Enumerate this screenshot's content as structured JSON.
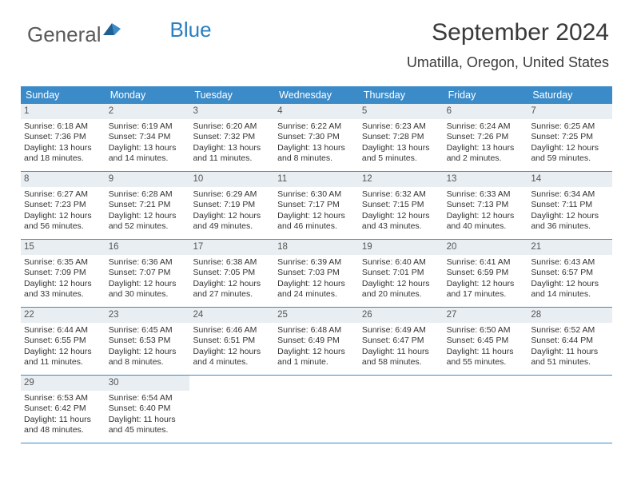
{
  "logo": {
    "text_gray": "General",
    "text_blue": "Blue"
  },
  "header": {
    "month_title": "September 2024",
    "location": "Umatilla, Oregon, United States"
  },
  "calendar": {
    "day_names": [
      "Sunday",
      "Monday",
      "Tuesday",
      "Wednesday",
      "Thursday",
      "Friday",
      "Saturday"
    ],
    "colors": {
      "header_bg": "#3b8bc9",
      "header_fg": "#ffffff",
      "daynum_bg": "#e9eef2",
      "daynum_fg": "#555555",
      "week_divider": "#3b8bc9",
      "text": "#333333"
    },
    "font": {
      "day_names_size": 12.5,
      "day_num_size": 11.5,
      "detail_size": 10.5
    },
    "weeks": [
      [
        {
          "day": "1",
          "sunrise": "Sunrise: 6:18 AM",
          "sunset": "Sunset: 7:36 PM",
          "daylight1": "Daylight: 13 hours",
          "daylight2": "and 18 minutes."
        },
        {
          "day": "2",
          "sunrise": "Sunrise: 6:19 AM",
          "sunset": "Sunset: 7:34 PM",
          "daylight1": "Daylight: 13 hours",
          "daylight2": "and 14 minutes."
        },
        {
          "day": "3",
          "sunrise": "Sunrise: 6:20 AM",
          "sunset": "Sunset: 7:32 PM",
          "daylight1": "Daylight: 13 hours",
          "daylight2": "and 11 minutes."
        },
        {
          "day": "4",
          "sunrise": "Sunrise: 6:22 AM",
          "sunset": "Sunset: 7:30 PM",
          "daylight1": "Daylight: 13 hours",
          "daylight2": "and 8 minutes."
        },
        {
          "day": "5",
          "sunrise": "Sunrise: 6:23 AM",
          "sunset": "Sunset: 7:28 PM",
          "daylight1": "Daylight: 13 hours",
          "daylight2": "and 5 minutes."
        },
        {
          "day": "6",
          "sunrise": "Sunrise: 6:24 AM",
          "sunset": "Sunset: 7:26 PM",
          "daylight1": "Daylight: 13 hours",
          "daylight2": "and 2 minutes."
        },
        {
          "day": "7",
          "sunrise": "Sunrise: 6:25 AM",
          "sunset": "Sunset: 7:25 PM",
          "daylight1": "Daylight: 12 hours",
          "daylight2": "and 59 minutes."
        }
      ],
      [
        {
          "day": "8",
          "sunrise": "Sunrise: 6:27 AM",
          "sunset": "Sunset: 7:23 PM",
          "daylight1": "Daylight: 12 hours",
          "daylight2": "and 56 minutes."
        },
        {
          "day": "9",
          "sunrise": "Sunrise: 6:28 AM",
          "sunset": "Sunset: 7:21 PM",
          "daylight1": "Daylight: 12 hours",
          "daylight2": "and 52 minutes."
        },
        {
          "day": "10",
          "sunrise": "Sunrise: 6:29 AM",
          "sunset": "Sunset: 7:19 PM",
          "daylight1": "Daylight: 12 hours",
          "daylight2": "and 49 minutes."
        },
        {
          "day": "11",
          "sunrise": "Sunrise: 6:30 AM",
          "sunset": "Sunset: 7:17 PM",
          "daylight1": "Daylight: 12 hours",
          "daylight2": "and 46 minutes."
        },
        {
          "day": "12",
          "sunrise": "Sunrise: 6:32 AM",
          "sunset": "Sunset: 7:15 PM",
          "daylight1": "Daylight: 12 hours",
          "daylight2": "and 43 minutes."
        },
        {
          "day": "13",
          "sunrise": "Sunrise: 6:33 AM",
          "sunset": "Sunset: 7:13 PM",
          "daylight1": "Daylight: 12 hours",
          "daylight2": "and 40 minutes."
        },
        {
          "day": "14",
          "sunrise": "Sunrise: 6:34 AM",
          "sunset": "Sunset: 7:11 PM",
          "daylight1": "Daylight: 12 hours",
          "daylight2": "and 36 minutes."
        }
      ],
      [
        {
          "day": "15",
          "sunrise": "Sunrise: 6:35 AM",
          "sunset": "Sunset: 7:09 PM",
          "daylight1": "Daylight: 12 hours",
          "daylight2": "and 33 minutes."
        },
        {
          "day": "16",
          "sunrise": "Sunrise: 6:36 AM",
          "sunset": "Sunset: 7:07 PM",
          "daylight1": "Daylight: 12 hours",
          "daylight2": "and 30 minutes."
        },
        {
          "day": "17",
          "sunrise": "Sunrise: 6:38 AM",
          "sunset": "Sunset: 7:05 PM",
          "daylight1": "Daylight: 12 hours",
          "daylight2": "and 27 minutes."
        },
        {
          "day": "18",
          "sunrise": "Sunrise: 6:39 AM",
          "sunset": "Sunset: 7:03 PM",
          "daylight1": "Daylight: 12 hours",
          "daylight2": "and 24 minutes."
        },
        {
          "day": "19",
          "sunrise": "Sunrise: 6:40 AM",
          "sunset": "Sunset: 7:01 PM",
          "daylight1": "Daylight: 12 hours",
          "daylight2": "and 20 minutes."
        },
        {
          "day": "20",
          "sunrise": "Sunrise: 6:41 AM",
          "sunset": "Sunset: 6:59 PM",
          "daylight1": "Daylight: 12 hours",
          "daylight2": "and 17 minutes."
        },
        {
          "day": "21",
          "sunrise": "Sunrise: 6:43 AM",
          "sunset": "Sunset: 6:57 PM",
          "daylight1": "Daylight: 12 hours",
          "daylight2": "and 14 minutes."
        }
      ],
      [
        {
          "day": "22",
          "sunrise": "Sunrise: 6:44 AM",
          "sunset": "Sunset: 6:55 PM",
          "daylight1": "Daylight: 12 hours",
          "daylight2": "and 11 minutes."
        },
        {
          "day": "23",
          "sunrise": "Sunrise: 6:45 AM",
          "sunset": "Sunset: 6:53 PM",
          "daylight1": "Daylight: 12 hours",
          "daylight2": "and 8 minutes."
        },
        {
          "day": "24",
          "sunrise": "Sunrise: 6:46 AM",
          "sunset": "Sunset: 6:51 PM",
          "daylight1": "Daylight: 12 hours",
          "daylight2": "and 4 minutes."
        },
        {
          "day": "25",
          "sunrise": "Sunrise: 6:48 AM",
          "sunset": "Sunset: 6:49 PM",
          "daylight1": "Daylight: 12 hours",
          "daylight2": "and 1 minute."
        },
        {
          "day": "26",
          "sunrise": "Sunrise: 6:49 AM",
          "sunset": "Sunset: 6:47 PM",
          "daylight1": "Daylight: 11 hours",
          "daylight2": "and 58 minutes."
        },
        {
          "day": "27",
          "sunrise": "Sunrise: 6:50 AM",
          "sunset": "Sunset: 6:45 PM",
          "daylight1": "Daylight: 11 hours",
          "daylight2": "and 55 minutes."
        },
        {
          "day": "28",
          "sunrise": "Sunrise: 6:52 AM",
          "sunset": "Sunset: 6:44 PM",
          "daylight1": "Daylight: 11 hours",
          "daylight2": "and 51 minutes."
        }
      ],
      [
        {
          "day": "29",
          "sunrise": "Sunrise: 6:53 AM",
          "sunset": "Sunset: 6:42 PM",
          "daylight1": "Daylight: 11 hours",
          "daylight2": "and 48 minutes."
        },
        {
          "day": "30",
          "sunrise": "Sunrise: 6:54 AM",
          "sunset": "Sunset: 6:40 PM",
          "daylight1": "Daylight: 11 hours",
          "daylight2": "and 45 minutes."
        },
        null,
        null,
        null,
        null,
        null
      ]
    ]
  }
}
